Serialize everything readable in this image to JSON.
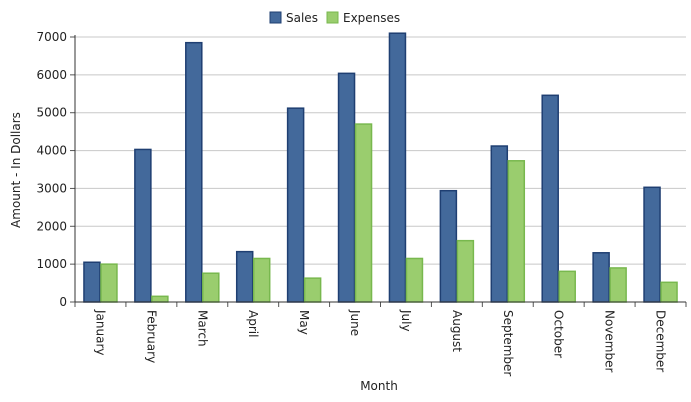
{
  "chart_data": {
    "type": "bar",
    "title": "",
    "xlabel": "Month",
    "ylabel": "Amount - In Dollars",
    "categories": [
      "January",
      "February",
      "March",
      "April",
      "May",
      "June",
      "July",
      "August",
      "September",
      "October",
      "November",
      "December"
    ],
    "ylim": [
      0,
      7000
    ],
    "yticks": [
      0,
      1000,
      2000,
      3000,
      4000,
      5000,
      6000,
      7000
    ],
    "grid": true,
    "legend_position": "top-center",
    "series": [
      {
        "name": "Sales",
        "color": "#43699B",
        "border": "#1F3F72",
        "values": [
          1050,
          4030,
          6850,
          1330,
          5120,
          6040,
          7100,
          2940,
          4120,
          5460,
          1300,
          3030
        ]
      },
      {
        "name": "Expenses",
        "color": "#9ACD6E",
        "border": "#78B84E",
        "values": [
          1000,
          150,
          760,
          1150,
          630,
          4700,
          1150,
          1620,
          3730,
          810,
          900,
          520
        ]
      }
    ]
  }
}
